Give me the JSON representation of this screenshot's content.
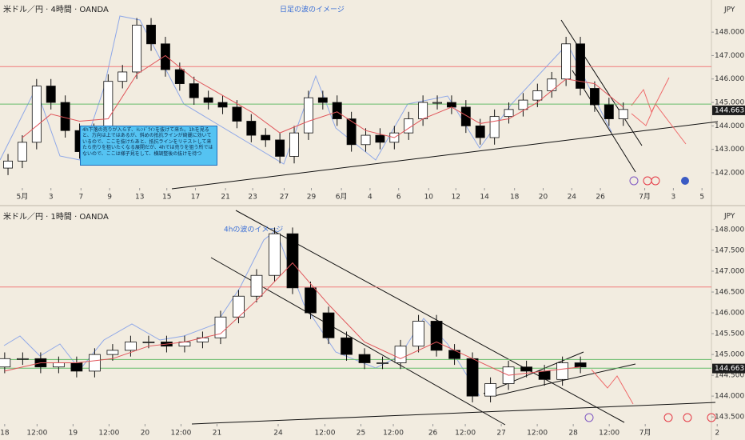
{
  "chart_data": [
    {
      "type": "candlestick",
      "title": "米ドル／円 · 4時間 · OANDA",
      "annotation": "日足の波のイメージ",
      "currency": "JPY",
      "last_price": 144.663,
      "note": "4h下落の売りが入らず、ﾄﾚﾝﾄﾞﾗｲﾝを抜けて来た。1hを見ると、方向は上ではあるが、斜めの抵抗ラインが綺麗に効いているので、ここを抜けたあと、抵抗ラインをリテストして来たら売りを狙いたくなる展開だが、4hでは売りを狙う所ではないので、ここは様子見をして、横調整後の抜けを待つ",
      "xlim": [
        -1.56,
        48.16
      ],
      "ylim": [
        141.35,
        149.37
      ],
      "xticks": [
        {
          "value": 0,
          "label": "5月"
        },
        {
          "value": 2,
          "label": "3"
        },
        {
          "value": 4.1,
          "label": "7"
        },
        {
          "value": 6.1,
          "label": "9"
        },
        {
          "value": 8.2,
          "label": "13"
        },
        {
          "value": 10.1,
          "label": "15"
        },
        {
          "value": 12.1,
          "label": "17"
        },
        {
          "value": 14.2,
          "label": "21"
        },
        {
          "value": 16.1,
          "label": "23"
        },
        {
          "value": 18.3,
          "label": "27"
        },
        {
          "value": 20.2,
          "label": "29"
        },
        {
          "value": 22.3,
          "label": "6月"
        },
        {
          "value": 24.3,
          "label": "4"
        },
        {
          "value": 26.3,
          "label": "6"
        },
        {
          "value": 28.4,
          "label": "10"
        },
        {
          "value": 30.3,
          "label": "12"
        },
        {
          "value": 32.3,
          "label": "14"
        },
        {
          "value": 34.4,
          "label": "18"
        },
        {
          "value": 36.4,
          "label": "20"
        },
        {
          "value": 38.4,
          "label": "24"
        },
        {
          "value": 40.4,
          "label": "26"
        },
        {
          "value": 43.5,
          "label": "7月"
        },
        {
          "value": 45.5,
          "label": "3"
        },
        {
          "value": 47.5,
          "label": "5"
        }
      ],
      "yticks": [
        {
          "value": 142,
          "label": "142.000"
        },
        {
          "value": 143,
          "label": "143.000"
        },
        {
          "value": 144,
          "label": "144.000"
        },
        {
          "value": 145,
          "label": "145.000"
        },
        {
          "value": 146,
          "label": "146.000"
        },
        {
          "value": 147,
          "label": "147.000"
        },
        {
          "value": 148,
          "label": "148.000"
        }
      ],
      "levels": [
        {
          "value": 146.53,
          "color": "#ef7b7b"
        },
        {
          "value": 144.93,
          "color": "#66bb6a"
        }
      ],
      "up_color": "#ffffff",
      "down_color": "#000000",
      "x": [
        -1,
        0,
        1,
        2,
        3,
        4,
        5,
        6,
        7,
        8,
        9,
        10,
        11,
        12,
        13,
        14,
        15,
        16,
        17,
        18,
        19,
        20,
        21,
        22,
        23,
        24,
        25,
        26,
        27,
        28,
        29,
        30,
        31,
        32,
        33,
        34,
        35,
        36,
        37,
        38,
        39,
        40,
        41,
        42
      ],
      "ohlc": {
        "open": [
          142.2,
          142.5,
          143.3,
          145.7,
          145.0,
          143.8,
          142.9,
          143.8,
          145.9,
          146.3,
          148.3,
          147.5,
          146.4,
          145.8,
          145.2,
          145.0,
          144.8,
          144.2,
          143.6,
          143.4,
          142.7,
          143.7,
          145.2,
          145.0,
          144.3,
          143.2,
          143.6,
          143.3,
          143.7,
          144.3,
          145.0,
          145.0,
          144.8,
          144.0,
          143.5,
          144.4,
          144.7,
          145.1,
          145.5,
          146.0,
          147.5,
          145.6,
          144.9,
          144.3
        ],
        "high": [
          142.8,
          143.6,
          146.0,
          146.0,
          145.3,
          144.1,
          144.1,
          146.2,
          146.6,
          148.6,
          148.6,
          147.8,
          146.7,
          146.1,
          145.5,
          145.3,
          145.1,
          144.5,
          143.9,
          143.7,
          144.0,
          145.5,
          145.5,
          145.3,
          144.6,
          143.9,
          143.9,
          144.0,
          144.6,
          145.3,
          145.3,
          145.3,
          145.1,
          144.3,
          144.7,
          145.0,
          145.4,
          145.8,
          146.3,
          147.8,
          147.8,
          145.9,
          145.2,
          145.0
        ],
        "low": [
          141.9,
          142.2,
          143.0,
          144.7,
          143.5,
          142.6,
          142.6,
          143.5,
          145.6,
          146.0,
          147.2,
          146.1,
          145.5,
          144.9,
          144.7,
          144.5,
          143.9,
          143.3,
          143.1,
          142.4,
          142.4,
          143.4,
          144.7,
          144.0,
          142.9,
          142.9,
          143.0,
          143.0,
          143.4,
          144.0,
          144.7,
          144.5,
          143.7,
          143.2,
          143.2,
          144.1,
          144.4,
          144.8,
          145.2,
          145.7,
          145.3,
          144.6,
          144.0,
          144.0
        ],
        "close": [
          142.5,
          143.3,
          145.7,
          145.0,
          143.8,
          142.9,
          143.8,
          145.9,
          146.3,
          148.3,
          147.5,
          146.4,
          145.8,
          145.2,
          145.0,
          144.8,
          144.2,
          143.6,
          143.4,
          142.7,
          143.7,
          145.2,
          145.0,
          144.3,
          143.2,
          143.6,
          143.3,
          143.7,
          144.3,
          145.0,
          145.0,
          144.8,
          144.0,
          143.5,
          144.4,
          144.7,
          145.1,
          145.5,
          146.0,
          147.5,
          145.6,
          144.9,
          144.3,
          144.7
        ]
      },
      "ma": {
        "color": "#e0555a",
        "x": [
          0,
          2,
          4,
          6,
          8,
          10,
          12,
          14,
          16,
          18,
          20,
          22,
          24,
          26,
          28,
          30,
          32,
          34,
          36,
          38,
          40,
          42
        ],
        "values": [
          143.5,
          144.5,
          144.2,
          144.3,
          146.2,
          147.0,
          146.0,
          145.3,
          144.6,
          143.7,
          144.2,
          144.6,
          143.8,
          143.5,
          144.3,
          144.8,
          144.1,
          144.3,
          145.0,
          146.0,
          145.8,
          144.8
        ]
      }
    },
    {
      "type": "candlestick",
      "title": "米ドル／円 · 1時間 · OANDA",
      "annotation": "4hの波のイメージ",
      "currency": "JPY",
      "last_price": 144.663,
      "xlim": [
        -0.13,
        19.64
      ],
      "ylim": [
        143.33,
        148.48
      ],
      "xticks": [
        {
          "value": 0,
          "label": "18"
        },
        {
          "value": 0.9,
          "label": "12:00"
        },
        {
          "value": 1.9,
          "label": "19"
        },
        {
          "value": 2.9,
          "label": "12:00"
        },
        {
          "value": 3.9,
          "label": "20"
        },
        {
          "value": 4.9,
          "label": "12:00"
        },
        {
          "value": 5.9,
          "label": "21"
        },
        {
          "value": 7.6,
          "label": "24"
        },
        {
          "value": 8.9,
          "label": "12:00"
        },
        {
          "value": 9.9,
          "label": "25"
        },
        {
          "value": 10.8,
          "label": "12:00"
        },
        {
          "value": 11.9,
          "label": "26"
        },
        {
          "value": 12.8,
          "label": "12:00"
        },
        {
          "value": 13.8,
          "label": "27"
        },
        {
          "value": 14.8,
          "label": "12:00"
        },
        {
          "value": 15.8,
          "label": "28"
        },
        {
          "value": 16.8,
          "label": "12:00"
        },
        {
          "value": 17.8,
          "label": "7月"
        },
        {
          "value": 19.8,
          "label": "2"
        }
      ],
      "yticks": [
        {
          "value": 143.5,
          "label": "143.500"
        },
        {
          "value": 144,
          "label": "144.000"
        },
        {
          "value": 144.5,
          "label": "144.500"
        },
        {
          "value": 145,
          "label": "145.000"
        },
        {
          "value": 145.5,
          "label": "145.500"
        },
        {
          "value": 146,
          "label": "146.000"
        },
        {
          "value": 146.5,
          "label": "146.500"
        },
        {
          "value": 147,
          "label": "147.000"
        },
        {
          "value": 147.5,
          "label": "147.500"
        },
        {
          "value": 148,
          "label": "148.000"
        }
      ],
      "levels": [
        {
          "value": 146.62,
          "color": "#ef7b7b"
        },
        {
          "value": 144.88,
          "color": "#66bb6a"
        },
        {
          "value": 144.67,
          "color": "#66bb6a"
        }
      ],
      "up_color": "#ffffff",
      "down_color": "#000000",
      "x": [
        0,
        0.5,
        1,
        1.5,
        2,
        2.5,
        3,
        3.5,
        4,
        4.5,
        5,
        5.5,
        6,
        6.5,
        7,
        7.5,
        8,
        8.5,
        9,
        9.5,
        10,
        10.5,
        11,
        11.5,
        12,
        12.5,
        13,
        13.5,
        14,
        14.5,
        15,
        15.5,
        16
      ],
      "ohlc": {
        "open": [
          144.7,
          144.9,
          144.9,
          144.7,
          144.8,
          144.6,
          145.0,
          145.1,
          145.3,
          145.3,
          145.2,
          145.3,
          145.4,
          145.9,
          146.4,
          146.9,
          147.9,
          146.6,
          146.0,
          145.4,
          145.0,
          144.8,
          144.8,
          145.2,
          145.8,
          145.1,
          144.9,
          144.0,
          144.3,
          144.7,
          144.6,
          144.4,
          144.8
        ],
        "high": [
          145.05,
          145.05,
          145.05,
          144.95,
          144.95,
          145.15,
          145.25,
          145.45,
          145.45,
          145.45,
          145.45,
          145.55,
          146.05,
          146.55,
          147.05,
          148.05,
          148.05,
          146.75,
          146.15,
          145.55,
          145.15,
          144.95,
          145.35,
          145.95,
          145.95,
          145.25,
          145.05,
          144.45,
          144.85,
          144.85,
          144.75,
          144.95,
          144.95
        ],
        "low": [
          144.55,
          144.75,
          144.55,
          144.55,
          144.45,
          144.45,
          144.85,
          144.95,
          145.15,
          145.05,
          145.05,
          145.15,
          145.25,
          145.75,
          146.25,
          146.75,
          146.45,
          145.85,
          145.25,
          144.85,
          144.65,
          144.65,
          144.65,
          145.05,
          144.95,
          144.75,
          143.85,
          143.85,
          144.15,
          144.45,
          144.25,
          144.25,
          144.55
        ],
        "close": [
          144.9,
          144.9,
          144.7,
          144.8,
          144.6,
          145.0,
          145.1,
          145.3,
          145.3,
          145.2,
          145.3,
          145.4,
          145.9,
          146.4,
          146.9,
          147.9,
          146.6,
          146.0,
          145.4,
          145.0,
          144.8,
          144.8,
          145.2,
          145.8,
          145.1,
          144.9,
          144.0,
          144.3,
          144.7,
          144.6,
          144.4,
          144.8,
          144.7
        ]
      },
      "ma": {
        "color": "#e0555a",
        "x": [
          0,
          1,
          2,
          3,
          4,
          5,
          6,
          7,
          8,
          9,
          10,
          11,
          12,
          13,
          14,
          15,
          16
        ],
        "values": [
          144.6,
          144.8,
          144.8,
          144.9,
          145.2,
          145.3,
          145.5,
          146.3,
          147.2,
          146.2,
          145.3,
          144.9,
          145.3,
          144.9,
          144.5,
          144.6,
          144.7
        ]
      }
    }
  ]
}
